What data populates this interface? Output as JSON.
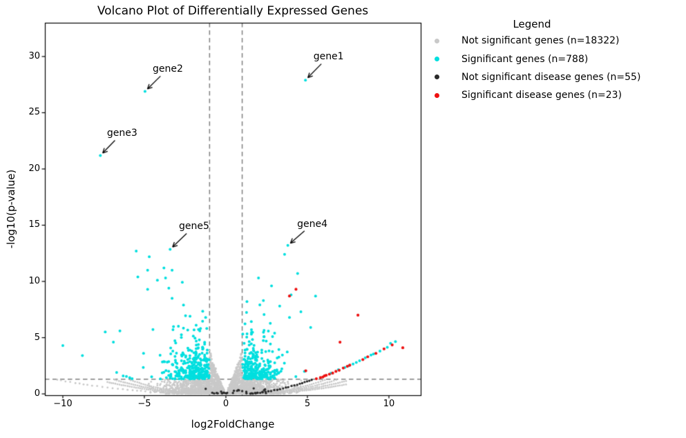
{
  "chart_data": {
    "type": "scatter",
    "title": "Volcano Plot of Differentially Expressed Genes",
    "xlabel": "log2FoldChange",
    "ylabel": "-log10(p-value)",
    "xlim": [
      -11.1,
      11.95
    ],
    "ylim": [
      -0.12,
      33.0
    ],
    "xticks": [
      -10,
      -5,
      0,
      5,
      10
    ],
    "xtick_labels": [
      "−10",
      "−5",
      "0",
      "5",
      "10"
    ],
    "yticks": [
      0,
      5,
      10,
      15,
      20,
      25,
      30
    ],
    "ytick_labels": [
      "0",
      "5",
      "10",
      "15",
      "20",
      "25",
      "30"
    ],
    "grid": false,
    "background_color": "#ffffff",
    "thresholds": {
      "vlines": [
        -1,
        1
      ],
      "hline": 1.3,
      "line_color": "#7f7f7f",
      "line_style": "dashed"
    },
    "legend": {
      "title": "Legend",
      "position": "right",
      "entries": [
        {
          "label": "Not significant genes (n=18322)",
          "n": 18322,
          "color": "#c9c9c9"
        },
        {
          "label": "Significant genes (n=788)",
          "n": 788,
          "color": "#00dfdf"
        },
        {
          "label": "Not significant disease genes (n=55)",
          "n": 55,
          "color": "#2a2a2a"
        },
        {
          "label": "Significant disease genes (n=23)",
          "n": 23,
          "color": "#ee1111"
        }
      ]
    },
    "annotations": [
      {
        "label": "gene1",
        "x": 4.88,
        "y": 27.9,
        "label_x": 6.3,
        "label_y": 30.0
      },
      {
        "label": "gene2",
        "x": -4.96,
        "y": 26.9,
        "label_x": -3.56,
        "label_y": 28.9
      },
      {
        "label": "gene3",
        "x": -7.7,
        "y": 21.2,
        "label_x": -6.36,
        "label_y": 23.2
      },
      {
        "label": "gene4",
        "x": 3.8,
        "y": 13.2,
        "label_x": 5.3,
        "label_y": 15.1
      },
      {
        "label": "gene5",
        "x": -3.42,
        "y": 12.85,
        "label_x": -1.95,
        "label_y": 14.9
      }
    ],
    "groups": [
      {
        "id": "not_significant",
        "color": "#c9c9c9",
        "dot_radius": 1.4,
        "carpet": {
          "count": 2700,
          "sd": 1.65,
          "min_x": 0.12,
          "max_x": 4.75,
          "wedge_height": 3.9,
          "wedge_pow": 1.15,
          "cap_y": 1.27,
          "ypow": 1.7
        },
        "strands": {
          "right_c": [
            0.022,
            0.03,
            0.04,
            0.052
          ],
          "left_c": [
            0.026,
            0.036,
            0.05
          ],
          "long_left": {
            "c": 0.014,
            "to": -10.45,
            "step": 0.28
          },
          "step": 0.13,
          "max_x": 7.4,
          "cap_y": 1.27
        },
        "rays": {
          "count": 14,
          "min_slope": 0.8,
          "slope_range": 3.1,
          "max_y": 3.9
        }
      },
      {
        "id": "significant",
        "color": "#00dfdf",
        "dot_radius": 2.0,
        "clusters": [
          {
            "side": -1,
            "count": 320,
            "x0": 1.08,
            "spread": 1.2,
            "xmax": 5.9,
            "ymean": 1.05,
            "ycap": 5.3,
            "boost": 0.1,
            "boostmax": 4.5,
            "quant": 0.13
          },
          {
            "side": 1,
            "count": 280,
            "x0": 1.08,
            "spread": 1.15,
            "xmax": 5.7,
            "ymean": 1.0,
            "ycap": 5.0,
            "boost": 0.09,
            "boostmax": 4.5,
            "quant": 0.13
          }
        ],
        "points": [
          [
            4.88,
            27.9
          ],
          [
            -4.96,
            26.9
          ],
          [
            -7.7,
            21.2
          ],
          [
            3.8,
            13.2
          ],
          [
            -3.42,
            12.85
          ],
          [
            -10.0,
            4.3
          ],
          [
            -8.8,
            3.4
          ],
          [
            -7.4,
            5.5
          ],
          [
            -6.5,
            5.6
          ],
          [
            -6.9,
            4.6
          ],
          [
            -5.5,
            12.7
          ],
          [
            -4.7,
            12.2
          ],
          [
            -4.8,
            11.0
          ],
          [
            -3.8,
            11.2
          ],
          [
            -3.3,
            11.0
          ],
          [
            -5.4,
            10.4
          ],
          [
            -4.2,
            10.1
          ],
          [
            -3.7,
            10.3
          ],
          [
            -4.8,
            9.3
          ],
          [
            -3.5,
            9.4
          ],
          [
            -3.3,
            8.5
          ],
          [
            -5.05,
            3.6
          ],
          [
            -2.6,
            7.9
          ],
          [
            -2.2,
            6.9
          ],
          [
            -1.6,
            5.6
          ],
          [
            2.0,
            10.3
          ],
          [
            2.8,
            9.6
          ],
          [
            3.6,
            12.4
          ],
          [
            4.0,
            8.8
          ],
          [
            5.5,
            8.7
          ],
          [
            4.4,
            10.7
          ],
          [
            3.9,
            6.8
          ],
          [
            5.2,
            5.9
          ],
          [
            4.6,
            7.3
          ],
          [
            3.3,
            7.8
          ],
          [
            2.3,
            8.3
          ]
        ],
        "strand_points": [
          [
            6.45,
            1.85
          ],
          [
            6.9,
            2.15
          ],
          [
            7.3,
            2.35
          ],
          [
            7.55,
            2.5
          ],
          [
            7.8,
            2.65
          ],
          [
            8.0,
            2.8
          ],
          [
            8.2,
            2.95
          ],
          [
            8.55,
            3.2
          ],
          [
            8.9,
            3.45
          ],
          [
            9.05,
            3.55
          ],
          [
            9.45,
            3.8
          ],
          [
            9.9,
            4.15
          ],
          [
            10.1,
            4.5
          ],
          [
            10.4,
            4.65
          ],
          [
            -5.75,
            1.35
          ],
          [
            -5.9,
            1.45
          ],
          [
            -6.1,
            1.55
          ],
          [
            -6.3,
            1.6
          ],
          [
            -6.7,
            1.9
          ]
        ]
      },
      {
        "id": "not_significant_disease",
        "color": "#2a2a2a",
        "dot_radius": 1.7,
        "strand": {
          "a": 0.0524,
          "b": 0.1226,
          "xoff": 1.4,
          "x_start": 1.5,
          "x_end": 5.35,
          "step": 0.17
        },
        "scatter": {
          "count": 28,
          "xmin": -1.35,
          "xrange": 4.0,
          "ybase": 0.04,
          "yrand": 0.55
        }
      },
      {
        "id": "significant_disease",
        "color": "#ee1111",
        "dot_radius": 2.1,
        "points": [
          [
            5.55,
            1.35
          ],
          [
            5.8,
            1.45
          ],
          [
            5.95,
            1.5
          ],
          [
            6.05,
            1.6
          ],
          [
            6.15,
            1.65
          ],
          [
            6.35,
            1.75
          ],
          [
            6.55,
            1.85
          ],
          [
            6.75,
            2.0
          ],
          [
            6.95,
            2.1
          ],
          [
            7.2,
            2.3
          ],
          [
            7.45,
            2.45
          ],
          [
            7.6,
            2.55
          ],
          [
            8.4,
            3.05
          ],
          [
            8.7,
            3.3
          ],
          [
            9.2,
            3.6
          ],
          [
            9.7,
            4.0
          ],
          [
            10.85,
            4.1
          ],
          [
            10.2,
            4.35
          ],
          [
            4.9,
            2.05
          ],
          [
            4.3,
            9.3
          ],
          [
            3.9,
            8.7
          ],
          [
            8.1,
            7.0
          ],
          [
            7.0,
            4.6
          ]
        ]
      }
    ]
  }
}
